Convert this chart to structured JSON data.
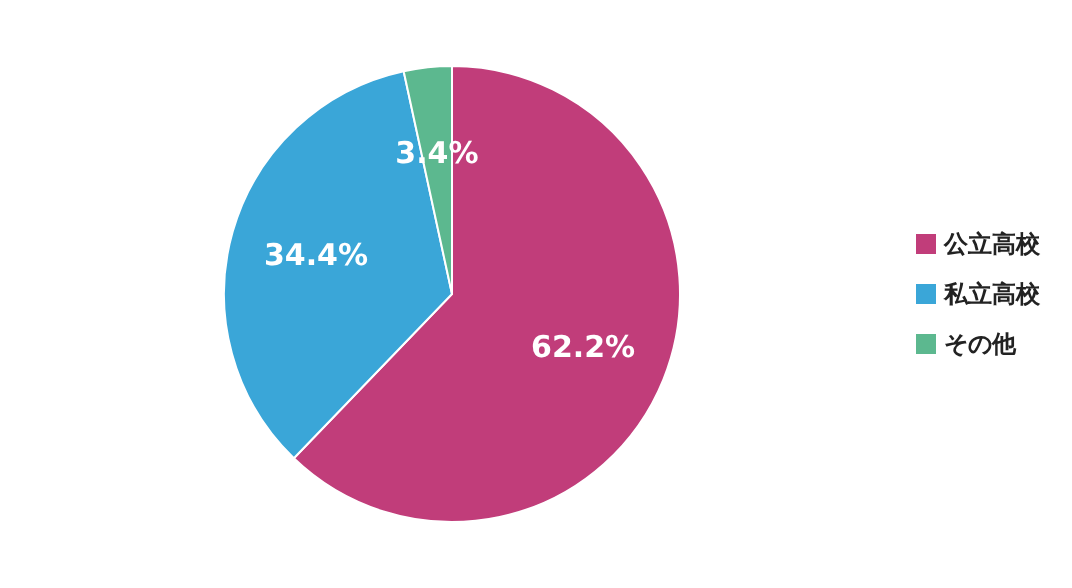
{
  "chart_data": {
    "type": "pie",
    "categories": [
      "公立高校",
      "私立高校",
      "その他"
    ],
    "values": [
      62.2,
      34.4,
      3.4
    ],
    "colors": [
      "#c13d7a",
      "#3aa6d8",
      "#5cb88f"
    ],
    "value_labels": [
      "62.2%",
      "34.4%",
      "3.4%"
    ],
    "legend": "right"
  }
}
